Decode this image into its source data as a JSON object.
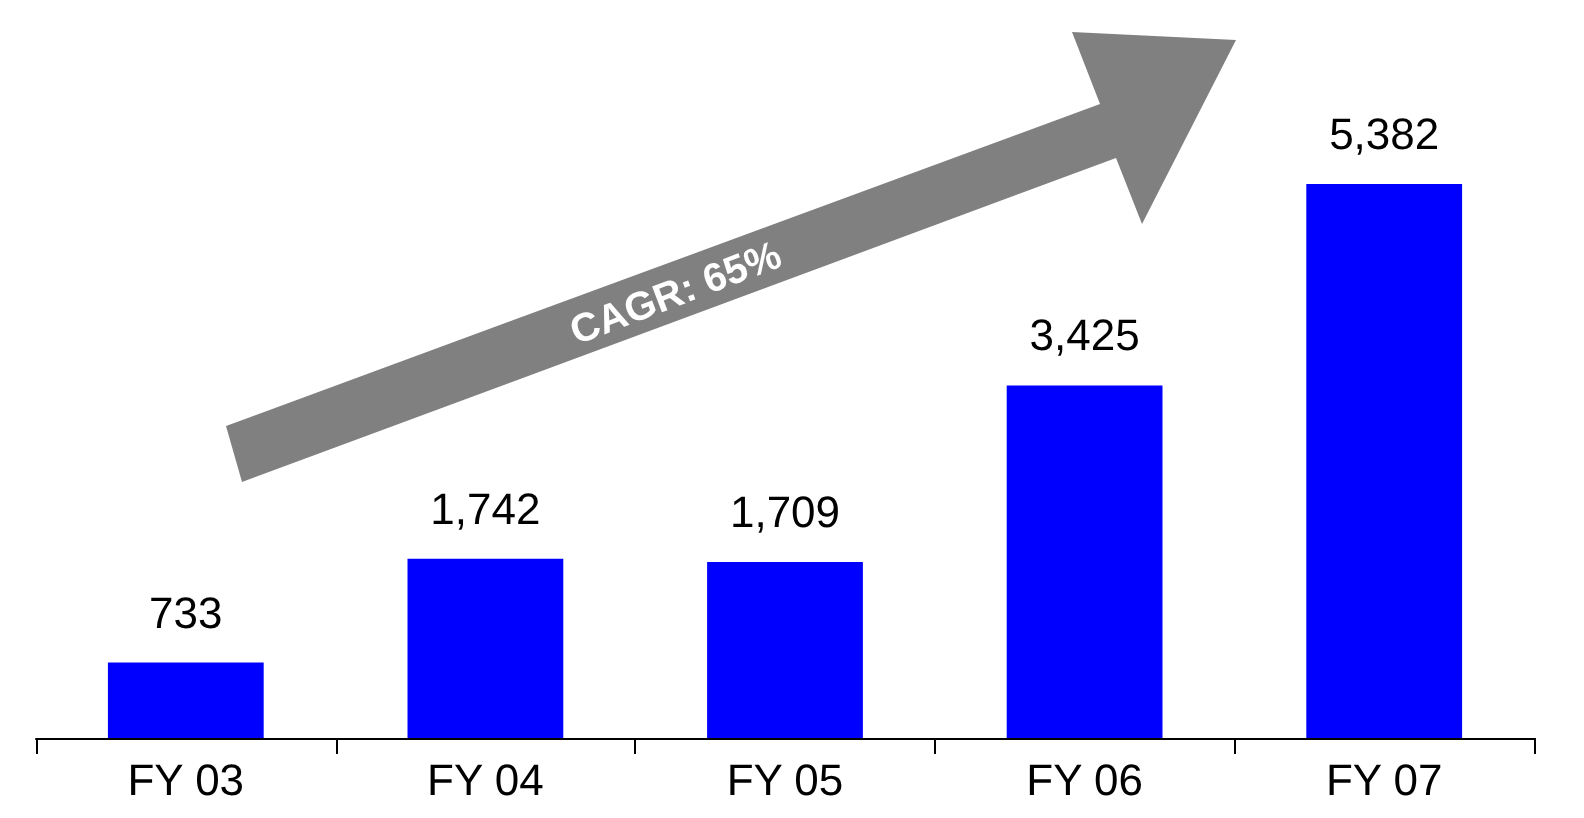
{
  "chart_data": {
    "type": "bar",
    "categories": [
      "FY 03",
      "FY 04",
      "FY 05",
      "FY 06",
      "FY 07"
    ],
    "values": [
      733,
      1742,
      1709,
      3425,
      5382
    ],
    "value_labels": [
      "733",
      "1,742",
      "1,709",
      "3,425",
      "5,382"
    ],
    "color": "#0000ff",
    "tick_labels": "x",
    "annotations": [
      "CAGR: 65%"
    ]
  }
}
